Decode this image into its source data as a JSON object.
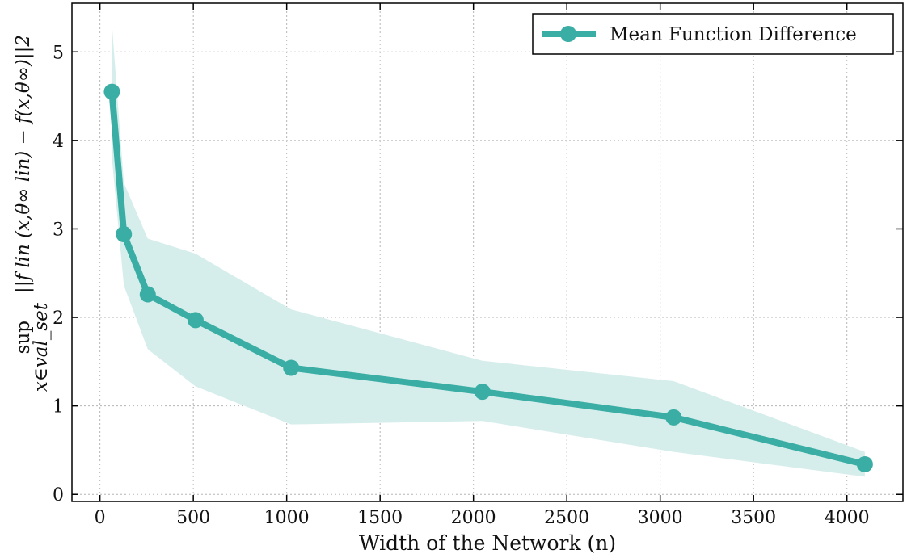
{
  "chart_data": {
    "type": "line",
    "title": "",
    "xlabel": "Width of the Network (n)",
    "ylabel": {
      "sup": "sup",
      "subscript": "x∈val_set",
      "expression": "||f lin (x,θ∞ lin) − f(x,θ∞)||2"
    },
    "xlim": [
      -150,
      4300
    ],
    "ylim": [
      -0.08,
      5.55
    ],
    "xticks": [
      0,
      500,
      1000,
      1500,
      2000,
      2500,
      3000,
      3500,
      4000
    ],
    "yticks": [
      0,
      1,
      2,
      3,
      4,
      5
    ],
    "grid": true,
    "legend_position": "top-right",
    "series": [
      {
        "name": "Mean Function Difference",
        "color": "#3aada4",
        "band_color": "#d6eeeb",
        "x": [
          64,
          128,
          256,
          512,
          1024,
          2048,
          3072,
          4096
        ],
        "y": [
          4.55,
          2.94,
          2.26,
          1.97,
          1.43,
          1.16,
          0.87,
          0.34
        ],
        "upper": [
          5.32,
          3.52,
          2.89,
          2.72,
          2.09,
          1.51,
          1.28,
          0.48
        ],
        "lower": [
          3.8,
          2.36,
          1.64,
          1.22,
          0.79,
          0.83,
          0.48,
          0.2
        ]
      }
    ]
  }
}
